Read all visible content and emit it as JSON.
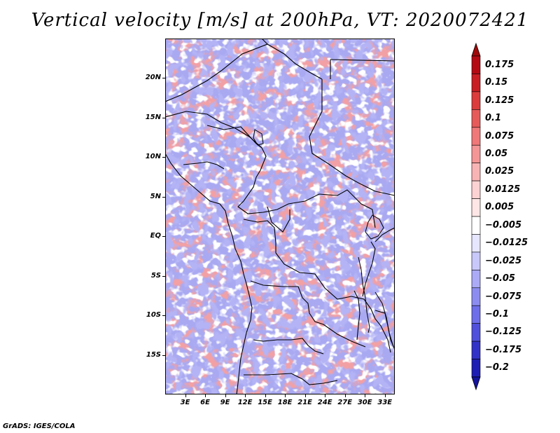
{
  "title": "Vertical velocity [m/s] at 200hPa, VT: 2020072421",
  "footer": "GrADS: IGES/COLA",
  "map": {
    "lon_range": [
      0,
      34.5
    ],
    "lat_range": [
      -20,
      25
    ],
    "lat_labels": [
      {
        "text": "20N",
        "lat": 20
      },
      {
        "text": "15N",
        "lat": 15
      },
      {
        "text": "10N",
        "lat": 10
      },
      {
        "text": "5N",
        "lat": 5
      },
      {
        "text": "EQ",
        "lat": 0
      },
      {
        "text": "5S",
        "lat": -5
      },
      {
        "text": "10S",
        "lat": -10
      },
      {
        "text": "15S",
        "lat": -15
      }
    ],
    "lon_labels": [
      {
        "text": "3E",
        "lon": 3
      },
      {
        "text": "6E",
        "lon": 6
      },
      {
        "text": "9E",
        "lon": 9
      },
      {
        "text": "12E",
        "lon": 12
      },
      {
        "text": "15E",
        "lon": 15
      },
      {
        "text": "18E",
        "lon": 18
      },
      {
        "text": "21E",
        "lon": 21
      },
      {
        "text": "24E",
        "lon": 24
      },
      {
        "text": "27E",
        "lon": 27
      },
      {
        "text": "30E",
        "lon": 30
      },
      {
        "text": "33E",
        "lon": 33
      }
    ]
  },
  "colorbar": {
    "levels": [
      {
        "label": "0.175",
        "color": "#b40a14"
      },
      {
        "label": "0.15",
        "color": "#c81e24"
      },
      {
        "label": "0.125",
        "color": "#dc3c3c"
      },
      {
        "label": "0.1",
        "color": "#e65a5a"
      },
      {
        "label": "0.075",
        "color": "#f07878"
      },
      {
        "label": "0.05",
        "color": "#f49696"
      },
      {
        "label": "0.025",
        "color": "#f8b4b4"
      },
      {
        "label": "0.0125",
        "color": "#fcd2d2"
      },
      {
        "label": "0.005",
        "color": "#fee6e6"
      },
      {
        "label": "−0.005",
        "color": "#ffffff"
      },
      {
        "label": "−0.0125",
        "color": "#e6e6fe"
      },
      {
        "label": "−0.025",
        "color": "#c8c8fa"
      },
      {
        "label": "−0.05",
        "color": "#aaaaf6"
      },
      {
        "label": "−0.075",
        "color": "#8c8cf0"
      },
      {
        "label": "−0.1",
        "color": "#6e6eea"
      },
      {
        "label": "−0.125",
        "color": "#5050dc"
      },
      {
        "label": "−0.175",
        "color": "#3232c8"
      },
      {
        "label": "−0.2",
        "color": "#1e1eb4"
      }
    ],
    "top_extension_color": "#a00a0a",
    "bottom_extension_color": "#14149c"
  }
}
